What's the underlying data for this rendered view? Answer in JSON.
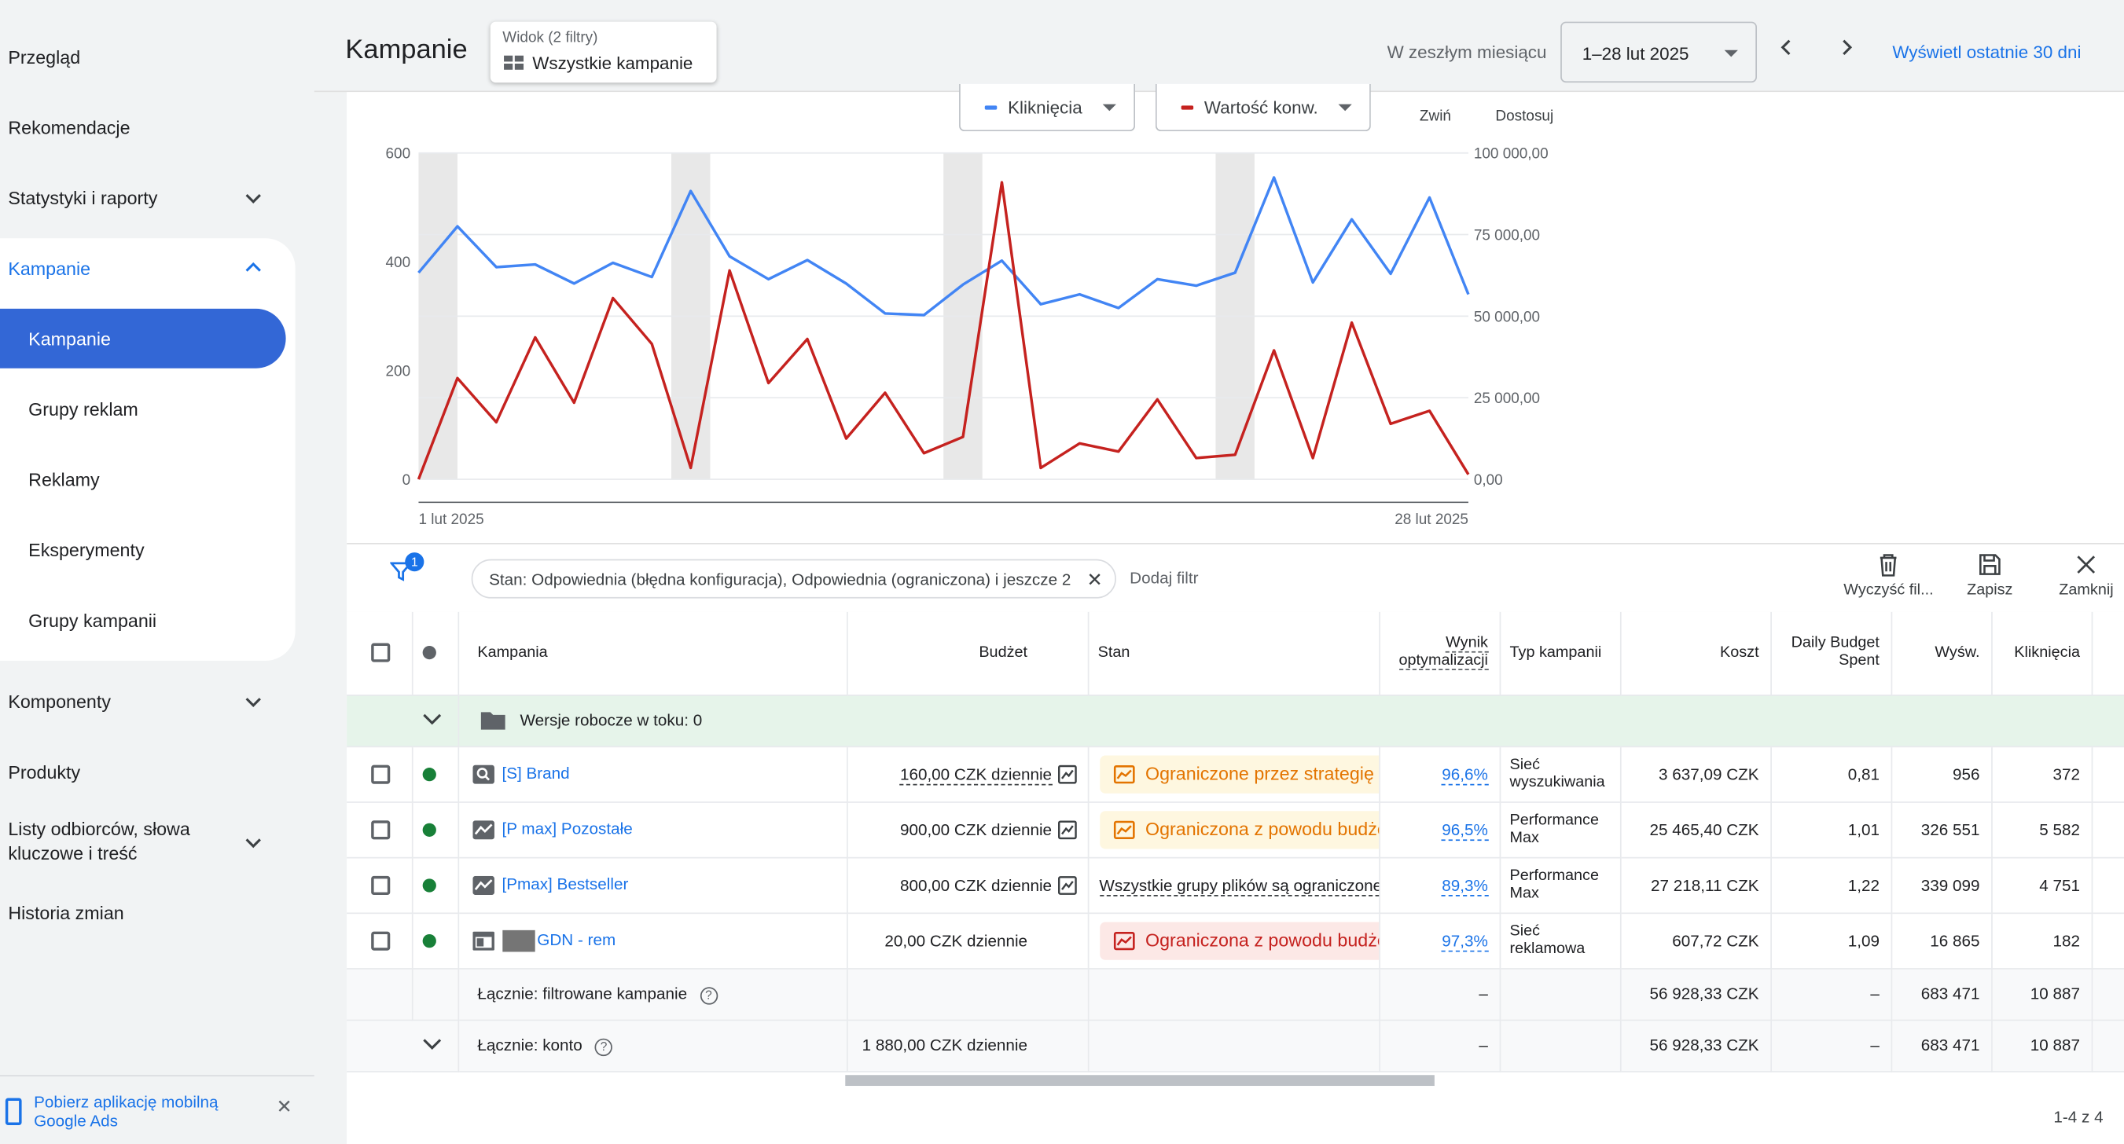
{
  "sidebar": {
    "items": [
      {
        "label": "Przegląd"
      },
      {
        "label": "Rekomendacje"
      },
      {
        "label": "Statystyki i raporty"
      },
      {
        "label": "Kampanie"
      },
      {
        "label": "Komponenty"
      },
      {
        "label": "Produkty"
      },
      {
        "label": "Listy odbiorców, słowa kluczowe i treść"
      },
      {
        "label": "Historia zmian"
      }
    ],
    "sub_items": [
      {
        "label": "Kampanie"
      },
      {
        "label": "Grupy reklam"
      },
      {
        "label": "Reklamy"
      },
      {
        "label": "Eksperymenty"
      },
      {
        "label": "Grupy kampanii"
      }
    ],
    "footer_text": "Pobierz aplikację mobilną Google Ads"
  },
  "header": {
    "title": "Kampanie",
    "view_label": "Widok (2 filtry)",
    "view_value": "Wszystkie kampanie",
    "date_label": "W zeszłym miesiącu",
    "date_range": "1–28 lut 2025",
    "show_30_days": "Wyświetl ostatnie 30 dni"
  },
  "chart_controls": {
    "metric1": "Kliknięcia",
    "metric2": "Wartość konw.",
    "collapse": "Zwiń",
    "customize": "Dostosuj"
  },
  "colors": {
    "blue": "#4285f4",
    "red": "#c5221f",
    "accent": "#1a73e8"
  },
  "chart_data": {
    "type": "line",
    "x_start_label": "1 lut 2025",
    "x_end_label": "28 lut 2025",
    "y_left_ticks": [
      "600",
      "400",
      "200",
      "0"
    ],
    "y_right_ticks": [
      "100 000,00",
      "75 000,00",
      "50 000,00",
      "25 000,00",
      "0,00"
    ],
    "y_left_range": [
      0,
      600
    ],
    "y_right_range": [
      0,
      100000
    ],
    "days": [
      1,
      2,
      3,
      4,
      5,
      6,
      7,
      8,
      9,
      10,
      11,
      12,
      13,
      14,
      15,
      16,
      17,
      18,
      19,
      20,
      21,
      22,
      23,
      24,
      25,
      26,
      27,
      28
    ],
    "weekend_days": [
      1,
      8,
      15,
      22
    ],
    "series": [
      {
        "name": "Kliknięcia",
        "axis": "left",
        "color": "#4285f4",
        "values": [
          380,
          465,
          390,
          395,
          360,
          398,
          372,
          530,
          410,
          368,
          403,
          360,
          305,
          302,
          358,
          402,
          322,
          340,
          315,
          368,
          356,
          380,
          555,
          362,
          478,
          378,
          518,
          340
        ]
      },
      {
        "name": "Wartość konw.",
        "axis": "right",
        "color": "#c5221f",
        "values": [
          0,
          31000,
          17500,
          43500,
          23500,
          55500,
          41500,
          3500,
          64000,
          29500,
          43000,
          12500,
          26500,
          8000,
          13000,
          91000,
          3500,
          11000,
          8500,
          24500,
          6500,
          7500,
          39500,
          6500,
          48000,
          17000,
          21000,
          1500
        ]
      }
    ]
  },
  "filter": {
    "badge": "1",
    "chip": "Stan: Odpowiednia (błędna konfiguracja), Odpowiednia (ograniczona) i jeszcze 2",
    "add": "Dodaj filtr",
    "clear": "Wyczyść fil...",
    "save": "Zapisz",
    "close": "Zamknij"
  },
  "table": {
    "headers": {
      "campaign": "Kampania",
      "budget": "Budżet",
      "status": "Stan",
      "score": "Wynik optymalizacji",
      "type": "Typ kampanii",
      "cost": "Koszt",
      "dbs": "Daily Budget Spent",
      "impr": "Wyśw.",
      "clicks": "Kliknięcia"
    },
    "drafts": "Wersje robocze w toku: 0",
    "rows": [
      {
        "name": "[S] Brand",
        "icon": "search-icon",
        "budget": "160,00 CZK dziennie",
        "status": "Ograniczone przez strategię",
        "status_kind": "orange",
        "score": "96,6%",
        "type": "Sieć wyszukiwania",
        "cost": "3 637,09 CZK",
        "dbs": "0,81",
        "impr": "956",
        "clicks": "372"
      },
      {
        "name": "[P max] Pozostałe",
        "icon": "pmax-icon",
        "budget": "900,00 CZK dziennie",
        "status": "Ograniczona z powodu budżetu",
        "status_kind": "orange",
        "score": "96,5%",
        "type": "Performance Max",
        "cost": "25 465,40 CZK",
        "dbs": "1,01",
        "impr": "326 551",
        "clicks": "5 582"
      },
      {
        "name": "[Pmax] Bestseller",
        "icon": "pmax-icon",
        "budget": "800,00 CZK dziennie",
        "status": "Wszystkie grupy plików są ograniczone przez",
        "status_kind": "text",
        "score": "89,3%",
        "type": "Performance Max",
        "cost": "27 218,11 CZK",
        "dbs": "1,22",
        "impr": "339 099",
        "clicks": "4 751"
      },
      {
        "name": "GDN - rem",
        "icon": "display-icon",
        "budget": "20,00 CZK dziennie",
        "status": "Ograniczona z powodu budżetu",
        "status_kind": "red",
        "score": "97,3%",
        "type": "Sieć reklamowa",
        "cost": "607,72 CZK",
        "dbs": "1,09",
        "impr": "16 865",
        "clicks": "182"
      }
    ],
    "total_filtered": {
      "label": "Łącznie: filtrowane kampanie",
      "score": "–",
      "cost": "56 928,33 CZK",
      "dbs": "–",
      "impr": "683 471",
      "clicks": "10 887"
    },
    "total_account": {
      "label": "Łącznie: konto",
      "budget": "1 880,00 CZK dziennie",
      "score": "–",
      "cost": "56 928,33 CZK",
      "dbs": "–",
      "impr": "683 471",
      "clicks": "10 887"
    },
    "pager": "1-4 z 4"
  }
}
